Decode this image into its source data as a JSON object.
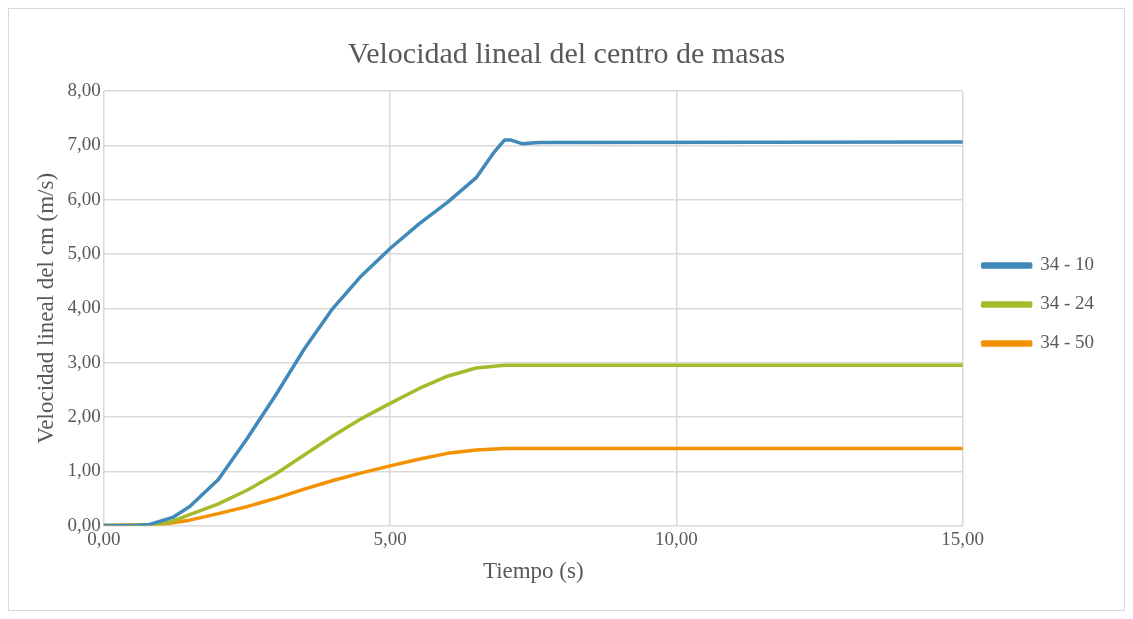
{
  "chart_data": {
    "type": "line",
    "title": "Velocidad lineal del centro de masas",
    "xlabel": "Tiempo (s)",
    "ylabel": "Velocidad lineal del cm (m/s)",
    "xlim": [
      0,
      15
    ],
    "xticks": [
      {
        "value": 0,
        "label": "0,00"
      },
      {
        "value": 5,
        "label": "5,00"
      },
      {
        "value": 10,
        "label": "10,00"
      },
      {
        "value": 15,
        "label": "15,00"
      }
    ],
    "ylim": [
      0,
      8
    ],
    "yticks": [
      {
        "value": 0,
        "label": "0,00"
      },
      {
        "value": 1,
        "label": "1,00"
      },
      {
        "value": 2,
        "label": "2,00"
      },
      {
        "value": 3,
        "label": "3,00"
      },
      {
        "value": 4,
        "label": "4,00"
      },
      {
        "value": 5,
        "label": "5,00"
      },
      {
        "value": 6,
        "label": "6,00"
      },
      {
        "value": 7,
        "label": "7,00"
      },
      {
        "value": 8,
        "label": "8,00"
      }
    ],
    "grid": true,
    "legend": "right",
    "marker": "none",
    "line_style": "solid",
    "series": [
      {
        "name": "34 - 10",
        "color": "#4189b9",
        "x": [
          0,
          0.5,
          0.8,
          1.2,
          1.5,
          2,
          2.5,
          3,
          3.5,
          4,
          4.5,
          5,
          5.5,
          6,
          6.5,
          6.8,
          7,
          7.1,
          7.3,
          7.6,
          15
        ],
        "values": [
          0,
          0,
          0.02,
          0.15,
          0.35,
          0.85,
          1.6,
          2.4,
          3.25,
          4,
          4.6,
          5.1,
          5.55,
          5.95,
          6.4,
          6.85,
          7.1,
          7.1,
          7.03,
          7.05,
          7.06
        ]
      },
      {
        "name": "34 - 24",
        "color": "#a5bb2b",
        "x": [
          0,
          0.8,
          1.2,
          1.5,
          2,
          2.5,
          3,
          3.5,
          4,
          4.5,
          5,
          5.5,
          6,
          6.5,
          7,
          15
        ],
        "values": [
          0,
          0,
          0.08,
          0.2,
          0.4,
          0.65,
          0.95,
          1.3,
          1.65,
          1.97,
          2.25,
          2.52,
          2.75,
          2.9,
          2.95,
          2.95
        ]
      },
      {
        "name": "34 - 50",
        "color": "#f39200",
        "x": [
          0,
          1,
          1.5,
          2,
          2.5,
          3,
          3.5,
          4,
          4.5,
          5,
          5.5,
          6,
          6.5,
          7,
          15
        ],
        "values": [
          0,
          0.02,
          0.1,
          0.22,
          0.35,
          0.5,
          0.67,
          0.83,
          0.97,
          1.1,
          1.22,
          1.33,
          1.39,
          1.42,
          1.42
        ]
      }
    ]
  }
}
